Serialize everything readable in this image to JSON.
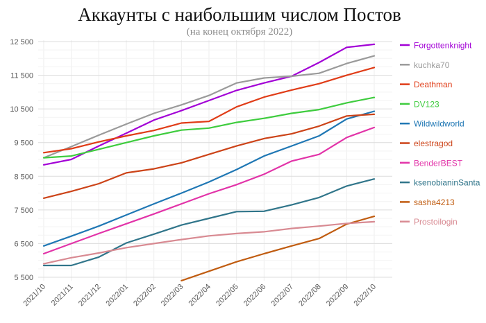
{
  "title": "Аккаунты с наибольшим числом Постов",
  "subtitle": "(на конец октября 2022)",
  "chart_data": {
    "type": "line",
    "x": [
      "2021/10",
      "2021/11",
      "2021/12",
      "2022/01",
      "2022/02",
      "2022/03",
      "2022/04",
      "2022/05",
      "2022/06",
      "2022/07",
      "2022/08",
      "2022/09",
      "2022/10"
    ],
    "series": [
      {
        "name": "Forgottenknight",
        "color": "#a200d6",
        "values": [
          8840,
          9000,
          9400,
          9780,
          10170,
          10450,
          10750,
          11050,
          11270,
          11470,
          11880,
          12330,
          12420
        ]
      },
      {
        "name": "kuchka70",
        "color": "#9a9a9a",
        "values": [
          9050,
          9380,
          9720,
          10050,
          10370,
          10620,
          10900,
          11270,
          11420,
          11470,
          11560,
          11850,
          12075
        ]
      },
      {
        "name": "Deathman",
        "color": "#e03c17",
        "values": [
          9200,
          9320,
          9520,
          9700,
          9860,
          10080,
          10130,
          10560,
          10850,
          11060,
          11250,
          11500,
          11730
        ]
      },
      {
        "name": "DV123",
        "color": "#3ecc3e",
        "values": [
          9050,
          9100,
          9300,
          9500,
          9700,
          9870,
          9930,
          10100,
          10220,
          10370,
          10480,
          10680,
          10840
        ]
      },
      {
        "name": "Wildwildworld",
        "color": "#1f77b4",
        "values": [
          6430,
          6720,
          7020,
          7350,
          7680,
          8000,
          8330,
          8700,
          9100,
          9400,
          9700,
          10200,
          10430
        ]
      },
      {
        "name": "elestragod",
        "color": "#cc4318",
        "values": [
          7850,
          8050,
          8280,
          8600,
          8720,
          8900,
          9150,
          9400,
          9620,
          9760,
          9990,
          10290,
          10340
        ]
      },
      {
        "name": "BenderBEST",
        "color": "#e233a8",
        "values": [
          6200,
          6500,
          6800,
          7090,
          7380,
          7680,
          7980,
          8250,
          8560,
          8950,
          9150,
          9650,
          9950
        ]
      },
      {
        "name": "ksenobianinSanta",
        "color": "#30758a",
        "values": [
          5850,
          5850,
          6100,
          6520,
          6780,
          7050,
          7250,
          7450,
          7460,
          7650,
          7870,
          8210,
          8420
        ]
      },
      {
        "name": "sasha4213",
        "color": "#c05c10",
        "values": [
          null,
          null,
          null,
          null,
          null,
          5400,
          5680,
          5960,
          6200,
          6430,
          6650,
          7080,
          7310
        ]
      },
      {
        "name": "Prostoilogin",
        "color": "#d88a92",
        "values": [
          5900,
          6080,
          6220,
          6380,
          6500,
          6620,
          6730,
          6800,
          6850,
          6950,
          7020,
          7100,
          7150
        ]
      }
    ],
    "ylim": [
      5400,
      12500
    ],
    "yticks": [
      12500,
      11500,
      10500,
      9500,
      8500,
      7500,
      6500,
      5500
    ],
    "ytick_labels": [
      "12 500",
      "11 500",
      "10 500",
      "9 500",
      "8 500",
      "7 500",
      "6 500",
      "5 500"
    ],
    "minor_tick_step": 250,
    "grid": "on",
    "legend_position": "right",
    "grid_major_color": "#dcdcdc",
    "grid_minor_color": "#f3f3f3",
    "grid_vertical_color": "#ededed",
    "axis_label_color": "#595959"
  }
}
